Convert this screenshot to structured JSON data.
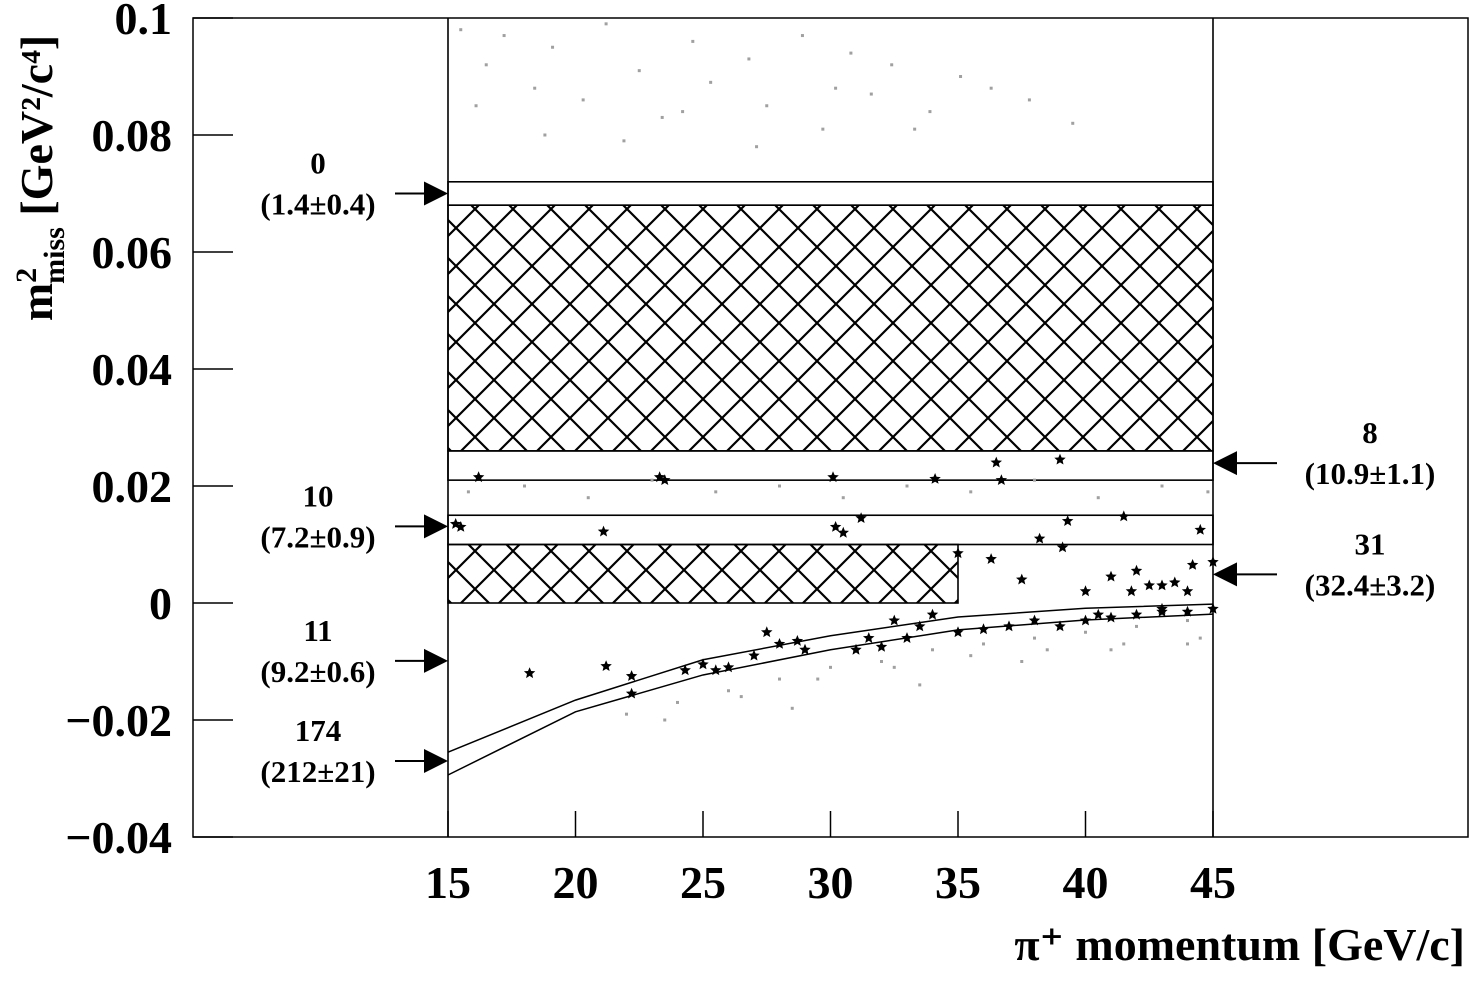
{
  "chart_data": {
    "type": "scatter",
    "x_label": "π⁺ momentum [GeV/c]",
    "y_label": {
      "base": "m",
      "sup": "2",
      "sub": "miss",
      "unit": " [GeV²/c⁴]"
    },
    "xlim": [
      5,
      55
    ],
    "ylim": [
      -0.04,
      0.1
    ],
    "xticks": [
      15,
      20,
      25,
      30,
      35,
      40,
      45
    ],
    "yticks": [
      {
        "value": -0.04,
        "label": "−0.04"
      },
      {
        "value": -0.02,
        "label": "−0.02"
      },
      0,
      0.02,
      0.04,
      0.06,
      0.08,
      0.1
    ],
    "cut_x": [
      15,
      45
    ],
    "boxes": [
      {
        "xlim": [
          15,
          45
        ],
        "ylim": [
          0.068,
          0.072
        ],
        "hatch": false
      },
      {
        "xlim": [
          15,
          45
        ],
        "ylim": [
          0.026,
          0.068
        ],
        "hatch": true
      },
      {
        "xlim": [
          15,
          45
        ],
        "ylim": [
          0.021,
          0.026
        ],
        "hatch": false
      },
      {
        "xlim": [
          15,
          45
        ],
        "ylim": [
          0.01,
          0.015
        ],
        "hatch": false
      },
      {
        "xlim": [
          15,
          35
        ],
        "ylim": [
          0,
          0.01
        ],
        "hatch": true
      }
    ],
    "curves": [
      {
        "x": [
          15,
          20,
          25,
          30,
          35,
          40,
          45
        ],
        "y": [
          -0.0255,
          -0.0166,
          -0.0097,
          -0.0056,
          -0.0024,
          -0.0009,
          -0.0002
        ]
      },
      {
        "x": [
          15,
          20,
          25,
          30,
          35,
          40,
          45
        ],
        "y": [
          -0.0294,
          -0.0186,
          -0.0123,
          -0.008,
          -0.0046,
          -0.0029,
          -0.0019
        ]
      }
    ],
    "annotations": [
      {
        "count": 0,
        "expected": "(1.4±0.4)",
        "arrow_y": 0.07,
        "side": "left"
      },
      {
        "count": 10,
        "expected": "(7.2±0.9)",
        "arrow_y": 0.0131,
        "side": "left"
      },
      {
        "count": 11,
        "expected": "(9.2±0.6)",
        "arrow_y": -0.0099,
        "side": "left"
      },
      {
        "count": 174,
        "expected": "(212±21)",
        "arrow_y": -0.027,
        "side": "left"
      },
      {
        "count": 8,
        "expected": "(10.9±1.1)",
        "arrow_y": 0.0239,
        "side": "right"
      },
      {
        "count": 31,
        "expected": "(32.4±3.2)",
        "arrow_y": 0.0049,
        "side": "right"
      }
    ],
    "series": [
      {
        "color": "#a0a0a0",
        "marker": "dot",
        "x": [
          15.5,
          16.5,
          17.2,
          18.4,
          19.1,
          20.3,
          21.2,
          22.5,
          23.4,
          24.6,
          25.3,
          26.8,
          27.5,
          28.9,
          29.7,
          30.8,
          31.6,
          32.4,
          33.9,
          35.1,
          36.3,
          37.8,
          39.5,
          16.1,
          18.8,
          21.9,
          24.2,
          27.1,
          30.2,
          33.3,
          15.8,
          18,
          20.5,
          23,
          25.5,
          28,
          30.5,
          33,
          35.5,
          38,
          40.5,
          43,
          44.8,
          22,
          24,
          26,
          28,
          30,
          32,
          34,
          36,
          38,
          40,
          42,
          44,
          23.5,
          26.5,
          29.5,
          32.5,
          35.5,
          38.5,
          41.5,
          44.5,
          28.5,
          33.5,
          37.5,
          41,
          44
        ],
        "y": [
          0.098,
          0.092,
          0.097,
          0.088,
          0.095,
          0.086,
          0.099,
          0.091,
          0.083,
          0.096,
          0.089,
          0.093,
          0.085,
          0.097,
          0.081,
          0.094,
          0.087,
          0.092,
          0.084,
          0.09,
          0.088,
          0.086,
          0.082,
          0.085,
          0.08,
          0.079,
          0.084,
          0.078,
          0.088,
          0.081,
          0.019,
          0.02,
          0.018,
          0.021,
          0.019,
          0.02,
          0.018,
          0.02,
          0.019,
          0.021,
          0.018,
          0.02,
          0.019,
          -0.019,
          -0.017,
          -0.015,
          -0.013,
          -0.011,
          -0.01,
          -0.008,
          -0.007,
          -0.006,
          -0.005,
          -0.004,
          -0.003,
          -0.02,
          -0.016,
          -0.013,
          -0.011,
          -0.009,
          -0.008,
          -0.007,
          -0.006,
          -0.018,
          -0.014,
          -0.01,
          -0.008,
          -0.007
        ]
      },
      {
        "color": "#000000",
        "marker": "star",
        "x": [
          15.3,
          15.5,
          16.2,
          18.2,
          21.1,
          21.2,
          22.2,
          22.2,
          23.3,
          23.5,
          24.3,
          25,
          25.5,
          26,
          27,
          27.5,
          28,
          28.7,
          29,
          30.1,
          30.2,
          30.5,
          31.2,
          31.5,
          32.5,
          33.5,
          34,
          34.1,
          35,
          36.3,
          36.5,
          36.7,
          37.5,
          38.2,
          39,
          39.1,
          39.3,
          40,
          40.5,
          41,
          41.5,
          41.8,
          42,
          42.5,
          43,
          43,
          43.5,
          44,
          44.2,
          44.5,
          45,
          38,
          39,
          40,
          41,
          42,
          43,
          44,
          45,
          37,
          36,
          35,
          33,
          32,
          31
        ],
        "y": [
          0.0135,
          0.013,
          0.0215,
          -0.012,
          0.0122,
          -0.0108,
          -0.0125,
          -0.0155,
          0.0215,
          0.021,
          -0.0115,
          -0.0105,
          -0.0115,
          -0.011,
          -0.009,
          -0.005,
          -0.007,
          -0.0065,
          -0.008,
          0.0215,
          0.013,
          0.012,
          0.0145,
          -0.006,
          -0.003,
          -0.004,
          -0.002,
          0.0212,
          0.0085,
          0.0075,
          0.024,
          0.021,
          0.004,
          0.011,
          0.0245,
          0.0095,
          0.014,
          0.002,
          -0.002,
          0.0045,
          0.0148,
          0.002,
          0.0055,
          0.003,
          -0.001,
          0.003,
          0.0035,
          0.002,
          0.0065,
          0.0125,
          0.007,
          -0.003,
          -0.004,
          -0.003,
          -0.0025,
          -0.002,
          -0.0015,
          -0.0015,
          -0.001,
          -0.004,
          -0.0045,
          -0.005,
          -0.006,
          -0.0075,
          -0.008
        ]
      }
    ]
  }
}
